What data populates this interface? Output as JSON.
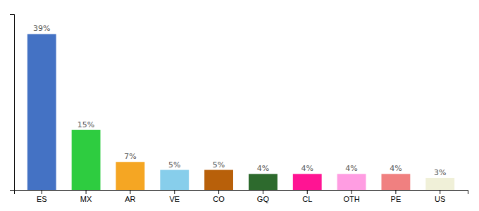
{
  "chart_data": {
    "type": "bar",
    "categories": [
      "ES",
      "MX",
      "AR",
      "VE",
      "CO",
      "GQ",
      "CL",
      "OTH",
      "PE",
      "US"
    ],
    "values": [
      39,
      15,
      7,
      5,
      5,
      4,
      4,
      4,
      4,
      3
    ],
    "value_labels": [
      "39%",
      "15%",
      "7%",
      "5%",
      "5%",
      "4%",
      "4%",
      "4%",
      "4%",
      "3%"
    ],
    "colors": [
      "#4472c4",
      "#2ecc40",
      "#f5a623",
      "#87ceeb",
      "#b8600a",
      "#2d6a2d",
      "#ff1493",
      "#ff9de2",
      "#f08080",
      "#f0f0d8"
    ],
    "ylim": [
      0,
      44
    ],
    "data_labels": true,
    "tick_labels": "x"
  }
}
